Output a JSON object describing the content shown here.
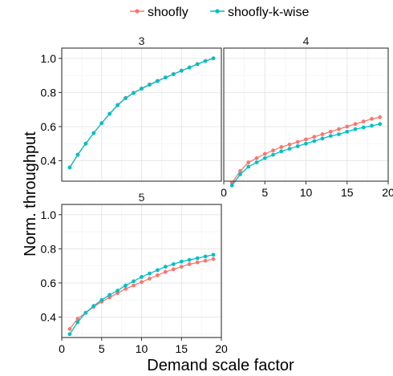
{
  "chart_data": {
    "type": "line",
    "title": "",
    "xlabel": "Demand scale factor",
    "ylabel": "Norm. throughput",
    "xlim": [
      0,
      20
    ],
    "ylim": [
      0.28,
      1.06
    ],
    "x_ticks": [
      0,
      5,
      10,
      15,
      20
    ],
    "y_ticks": [
      0.4,
      0.6,
      0.8,
      1.0
    ],
    "y_tick_labels": [
      "0.4",
      "0.6",
      "0.8",
      "1.0"
    ],
    "grid": true,
    "legend_position": "top",
    "legend": [
      {
        "name": "shoofly",
        "color": "#F8766D"
      },
      {
        "name": "shoofly-k-wise",
        "color": "#00BFC4"
      }
    ],
    "facets": [
      {
        "strip": "3",
        "x": [
          1,
          2,
          3,
          4,
          5,
          6,
          7,
          8,
          9,
          10,
          11,
          12,
          13,
          14,
          15,
          16,
          17,
          18,
          19
        ],
        "series": [
          {
            "name": "shoofly",
            "values": [
              0.36,
              0.435,
              0.5,
              0.562,
              0.62,
              0.675,
              0.727,
              0.768,
              0.798,
              0.823,
              0.847,
              0.868,
              0.888,
              0.908,
              0.928,
              0.947,
              0.966,
              0.984,
              1.0
            ]
          },
          {
            "name": "shoofly-k-wise",
            "values": [
              0.36,
              0.435,
              0.5,
              0.562,
              0.62,
              0.675,
              0.725,
              0.766,
              0.797,
              0.822,
              0.845,
              0.866,
              0.887,
              0.907,
              0.927,
              0.946,
              0.966,
              0.984,
              1.0
            ]
          }
        ]
      },
      {
        "strip": "4",
        "x": [
          1,
          2,
          3,
          4,
          5,
          6,
          7,
          8,
          9,
          10,
          11,
          12,
          13,
          14,
          15,
          16,
          17,
          18,
          19
        ],
        "series": [
          {
            "name": "shoofly",
            "values": [
              0.27,
              0.34,
              0.39,
              0.415,
              0.44,
              0.46,
              0.48,
              0.495,
              0.51,
              0.525,
              0.54,
              0.555,
              0.57,
              0.585,
              0.6,
              0.615,
              0.63,
              0.645,
              0.655
            ]
          },
          {
            "name": "shoofly-k-wise",
            "values": [
              0.255,
              0.32,
              0.365,
              0.39,
              0.415,
              0.435,
              0.455,
              0.47,
              0.485,
              0.5,
              0.515,
              0.53,
              0.545,
              0.555,
              0.57,
              0.585,
              0.595,
              0.605,
              0.615
            ]
          }
        ]
      },
      {
        "strip": "5",
        "x": [
          1,
          2,
          3,
          4,
          5,
          6,
          7,
          8,
          9,
          10,
          11,
          12,
          13,
          14,
          15,
          16,
          17,
          18,
          19
        ],
        "series": [
          {
            "name": "shoofly",
            "values": [
              0.33,
              0.39,
              0.425,
              0.46,
              0.49,
              0.515,
              0.54,
              0.565,
              0.585,
              0.605,
              0.625,
              0.645,
              0.665,
              0.68,
              0.695,
              0.71,
              0.72,
              0.73,
              0.74
            ]
          },
          {
            "name": "shoofly-k-wise",
            "values": [
              0.3,
              0.37,
              0.425,
              0.465,
              0.5,
              0.53,
              0.555,
              0.585,
              0.61,
              0.635,
              0.655,
              0.675,
              0.695,
              0.71,
              0.725,
              0.735,
              0.745,
              0.755,
              0.765
            ]
          }
        ]
      }
    ]
  }
}
